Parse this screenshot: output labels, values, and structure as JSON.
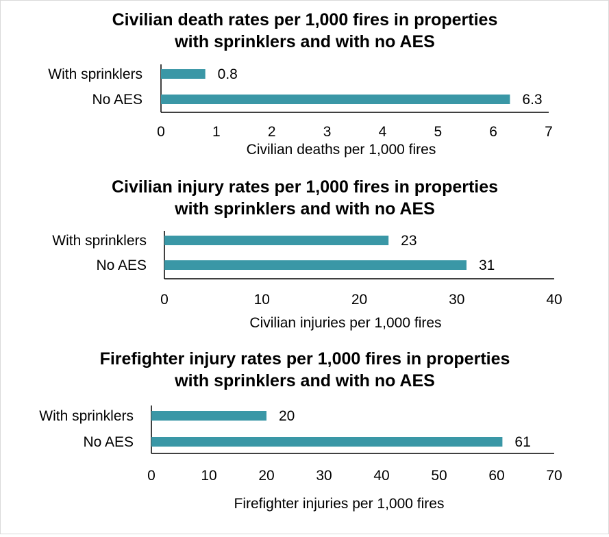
{
  "chart_data": [
    {
      "type": "bar",
      "orientation": "horizontal",
      "title_lines": [
        "Civilian death rates per 1,000 fires in properties",
        "with sprinklers and with no AES"
      ],
      "categories": [
        "With sprinklers",
        "No AES"
      ],
      "values": [
        0.8,
        6.3
      ],
      "value_labels": [
        "0.8",
        "6.3"
      ],
      "xlabel": "Civilian deaths per 1,000 fires",
      "xlim": [
        0,
        7
      ],
      "ticks": [
        "0",
        "1",
        "2",
        "3",
        "4",
        "5",
        "6",
        "7"
      ],
      "bar_color": "#3a97a6",
      "grid": false,
      "legend": "none"
    },
    {
      "type": "bar",
      "orientation": "horizontal",
      "title_lines": [
        "Civilian injury rates per 1,000 fires in properties",
        "with sprinklers and with no AES"
      ],
      "categories": [
        "With sprinklers",
        "No AES"
      ],
      "values": [
        23,
        31
      ],
      "value_labels": [
        "23",
        "31"
      ],
      "xlabel": "Civilian injuries per 1,000 fires",
      "xlim": [
        0,
        40
      ],
      "ticks": [
        "0",
        "10",
        "20",
        "30",
        "40"
      ],
      "bar_color": "#3a97a6",
      "grid": false,
      "legend": "none"
    },
    {
      "type": "bar",
      "orientation": "horizontal",
      "title_lines": [
        "Firefighter injury rates per 1,000 fires in properties",
        "with sprinklers and with no AES"
      ],
      "categories": [
        "With sprinklers",
        "No AES"
      ],
      "values": [
        20,
        61
      ],
      "value_labels": [
        "20",
        "61"
      ],
      "xlabel": "Firefighter injuries per 1,000 fires",
      "xlim": [
        0,
        70
      ],
      "ticks": [
        "0",
        "10",
        "20",
        "30",
        "40",
        "50",
        "60",
        "70"
      ],
      "bar_color": "#3a97a6",
      "grid": false,
      "legend": "none"
    }
  ]
}
